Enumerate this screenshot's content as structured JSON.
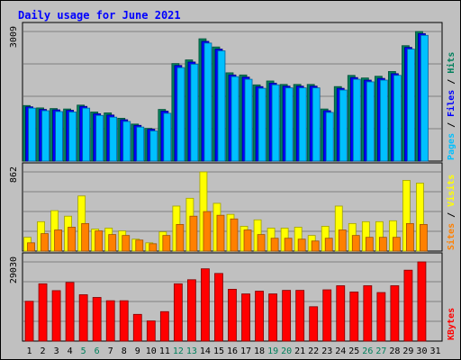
{
  "chart_data": {
    "type": "bar",
    "title": "Daily usage for June 2021",
    "categories": [
      "1",
      "2",
      "3",
      "4",
      "5",
      "6",
      "7",
      "8",
      "9",
      "10",
      "11",
      "12",
      "13",
      "14",
      "15",
      "16",
      "17",
      "18",
      "19",
      "20",
      "21",
      "22",
      "23",
      "24",
      "25",
      "26",
      "27",
      "28",
      "29",
      "30",
      "31"
    ],
    "weekend_days": [
      "5",
      "6",
      "12",
      "13",
      "19",
      "20",
      "26",
      "27"
    ],
    "panels": [
      {
        "id": "hits-files-pages",
        "max_label": "3009",
        "ymax": 3009,
        "series": [
          {
            "name": "Hits",
            "color": "#00805c",
            "values": [
              1290,
              1235,
              1220,
              1210,
              1300,
              1140,
              1120,
              995,
              860,
              760,
              1200,
              2265,
              2350,
              2840,
              2650,
              2050,
              2000,
              1770,
              1860,
              1780,
              1780,
              1780,
              1210,
              1730,
              1990,
              1930,
              1970,
              2080,
              2680,
              3009,
              0
            ]
          },
          {
            "name": "Files",
            "color": "#0000ff",
            "values": [
              1260,
              1200,
              1190,
              1180,
              1270,
              1100,
              1070,
              960,
              830,
              740,
              1160,
              2220,
              2300,
              2780,
              2600,
              2000,
              1950,
              1730,
              1810,
              1740,
              1740,
              1740,
              1170,
              1690,
              1940,
              1880,
              1920,
              2030,
              2640,
              2960,
              0
            ]
          },
          {
            "name": "Pages",
            "color": "#00c0ff",
            "values": [
              1230,
              1170,
              1150,
              1140,
              1230,
              1060,
              1020,
              920,
              790,
              700,
              1110,
              2170,
              2250,
              2740,
              2560,
              1960,
              1900,
              1690,
              1770,
              1700,
              1700,
              1700,
              1130,
              1650,
              1900,
              1840,
              1880,
              1990,
              2600,
              2920,
              0
            ]
          }
        ],
        "legend": [
          "Pages",
          "Files",
          "Hits"
        ]
      },
      {
        "id": "visits-sites",
        "max_label": "862",
        "ymax": 862,
        "series": [
          {
            "name": "Visits",
            "color": "#ffff00",
            "values": [
              150,
              320,
              440,
              380,
              600,
              240,
              250,
              220,
              130,
              90,
              210,
              490,
              575,
              862,
              520,
              400,
              270,
              340,
              250,
              250,
              260,
              170,
              270,
              490,
              300,
              320,
              320,
              330,
              770,
              740,
              0
            ]
          },
          {
            "name": "Sites",
            "color": "#ff8000",
            "values": [
              90,
              190,
              230,
              260,
              300,
              220,
              180,
              170,
              120,
              80,
              170,
              290,
              380,
              430,
              390,
              350,
              230,
              180,
              140,
              140,
              130,
              110,
              140,
              230,
              170,
              150,
              150,
              150,
              300,
              290,
              0
            ]
          }
        ],
        "legend": [
          "Sites",
          "Visits"
        ]
      },
      {
        "id": "kbytes",
        "max_label": "29030",
        "ymax": 29030,
        "series": [
          {
            "name": "KBytes",
            "color": "#ff0000",
            "values": [
              14600,
              21000,
              18500,
              21500,
              17000,
              16000,
              14800,
              14800,
              9800,
              7400,
              10800,
              21000,
              22500,
              26500,
              24800,
              19000,
              17300,
              18300,
              17300,
              18600,
              18600,
              12600,
              18800,
              20300,
              18000,
              20300,
              17800,
              20300,
              26000,
              29030,
              0
            ]
          }
        ],
        "legend": [
          "KBytes"
        ]
      }
    ]
  }
}
